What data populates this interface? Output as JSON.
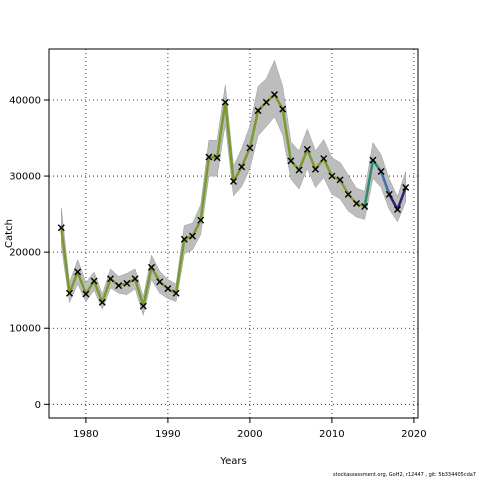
{
  "chart_data": {
    "type": "line",
    "title": "",
    "xlabel": "Years",
    "ylabel": "Catch",
    "xlim": [
      1975.5,
      2020.5
    ],
    "ylim": [
      -1800,
      46700
    ],
    "x_ticks": [
      1980,
      1990,
      2000,
      2010,
      2020
    ],
    "y_ticks": [
      0,
      10000,
      20000,
      30000,
      40000
    ],
    "grid": "dotted",
    "legend": "none",
    "years": [
      1977,
      1978,
      1979,
      1980,
      1981,
      1982,
      1983,
      1984,
      1985,
      1986,
      1987,
      1988,
      1989,
      1990,
      1991,
      1992,
      1993,
      1994,
      1995,
      1996,
      1997,
      1998,
      1999,
      2000,
      2001,
      2002,
      2003,
      2004,
      2005,
      2006,
      2007,
      2008,
      2009,
      2010,
      2011,
      2012,
      2013,
      2014,
      2015,
      2016,
      2017,
      2018,
      2019
    ],
    "observed": [
      23200,
      14600,
      17400,
      14500,
      16200,
      13400,
      16500,
      15600,
      15900,
      16500,
      12900,
      18000,
      16100,
      15200,
      14600,
      21700,
      22100,
      24200,
      32500,
      32400,
      39700,
      29300,
      31200,
      33700,
      38600,
      39700,
      40700,
      38800,
      32000,
      30800,
      33500,
      30900,
      32300,
      30000,
      29500,
      27600,
      26400,
      26000,
      32100,
      30600,
      27600,
      25600,
      28500
    ],
    "band_lower": [
      20800,
      13400,
      15800,
      13500,
      15000,
      12500,
      15300,
      14600,
      14400,
      15200,
      11700,
      16400,
      14600,
      13900,
      13500,
      19800,
      20300,
      22300,
      30000,
      30000,
      36800,
      27400,
      28600,
      31000,
      35300,
      36500,
      37800,
      35400,
      29600,
      28300,
      31000,
      28500,
      29800,
      27600,
      27000,
      25400,
      24600,
      24300,
      29700,
      28500,
      25600,
      24000,
      26600
    ],
    "band_upper": [
      25800,
      16000,
      19000,
      16000,
      17400,
      14500,
      17800,
      16800,
      17200,
      17800,
      14100,
      19600,
      17500,
      16400,
      15800,
      23500,
      23800,
      26200,
      34700,
      34700,
      42000,
      31300,
      33600,
      36600,
      41800,
      42800,
      45200,
      41800,
      34500,
      33300,
      36200,
      33300,
      34800,
      32400,
      31800,
      30100,
      28400,
      28000,
      34400,
      32800,
      29600,
      27300,
      30600
    ],
    "series": [
      {
        "name": "",
        "color": "#7a9a2e",
        "x_range": [
          1977,
          2012
        ],
        "values": [
          23200,
          14600,
          17400,
          14500,
          16200,
          13400,
          16500,
          15600,
          15900,
          16500,
          12900,
          18000,
          16100,
          15200,
          14600,
          21700,
          22100,
          24200,
          32500,
          32400,
          39700,
          29300,
          31200,
          33700,
          38600,
          39700,
          40700,
          38800,
          32000,
          30800,
          33500,
          30900,
          32300,
          30000,
          29500
        ]
      },
      {
        "name": "",
        "color": "#8c9a3a",
        "x_range": [
          2010,
          2014
        ],
        "values": [
          30000,
          29500,
          27600,
          26400,
          26000
        ]
      },
      {
        "name": "",
        "color": "#2e8b6e",
        "x_range": [
          2014,
          2016
        ],
        "values": [
          26000,
          32100,
          30600
        ]
      },
      {
        "name": "",
        "color": "#3a6fb0",
        "x_range": [
          2016,
          2017
        ],
        "values": [
          30600,
          27600
        ]
      },
      {
        "name": "",
        "color": "#2b1f6e",
        "x_range": [
          2017,
          2019
        ],
        "values": [
          27600,
          25600,
          28500
        ]
      }
    ],
    "marker": "x",
    "band_color": "#bdbdbd"
  },
  "footer_text": "stockassessment.org, GoH2, r12447 , git: 5b334405cda7"
}
